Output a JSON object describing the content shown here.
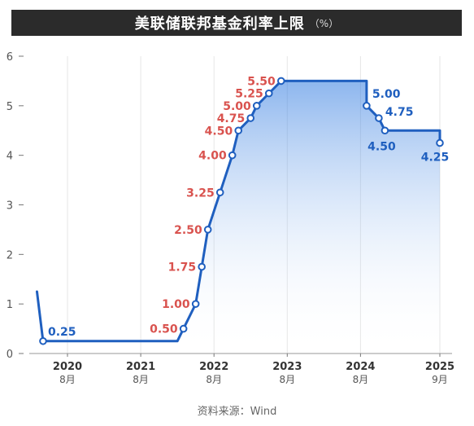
{
  "title": "美联储联邦基金利率上限",
  "unit": "（%）",
  "source_label": "资料来源：Wind",
  "chart_data": {
    "type": "line",
    "title": "美联储联邦基金利率上限",
    "ylabel": "",
    "xlabel": "",
    "ylim": [
      0,
      6
    ],
    "yticks": [
      0,
      1,
      2,
      3,
      4,
      5,
      6
    ],
    "grid": "vertical",
    "xticks": [
      {
        "year": "2020",
        "month": "8月",
        "x": "2020-08"
      },
      {
        "year": "2021",
        "month": "8月",
        "x": "2021-08"
      },
      {
        "year": "2022",
        "month": "8月",
        "x": "2022-08"
      },
      {
        "year": "2023",
        "month": "8月",
        "x": "2023-08"
      },
      {
        "year": "2024",
        "month": "8月",
        "x": "2024-08"
      },
      {
        "year": "2025",
        "month": "9月",
        "x": "2025-09"
      }
    ],
    "series": [
      {
        "values": [
          {
            "x": "2020-03",
            "y": 1.25
          },
          {
            "x": "2020-04",
            "y": 0.25
          },
          {
            "x": "2022-02",
            "y": 0.25
          },
          {
            "x": "2022-03",
            "y": 0.5
          },
          {
            "x": "2022-05",
            "y": 1.0
          },
          {
            "x": "2022-06",
            "y": 1.75
          },
          {
            "x": "2022-07",
            "y": 2.5
          },
          {
            "x": "2022-09",
            "y": 3.25
          },
          {
            "x": "2022-11",
            "y": 4.0
          },
          {
            "x": "2022-12",
            "y": 4.5
          },
          {
            "x": "2023-02",
            "y": 4.75
          },
          {
            "x": "2023-03",
            "y": 5.0
          },
          {
            "x": "2023-05",
            "y": 5.25
          },
          {
            "x": "2023-07",
            "y": 5.5
          },
          {
            "x": "2024-09",
            "y": 5.5
          },
          {
            "x": "2024-09",
            "y": 5.0
          },
          {
            "x": "2024-11",
            "y": 4.75
          },
          {
            "x": "2024-12",
            "y": 4.5
          },
          {
            "x": "2025-09",
            "y": 4.5
          },
          {
            "x": "2025-09",
            "y": 4.25
          }
        ]
      }
    ],
    "annotations": [
      {
        "x": "2020-04",
        "y": 0.25,
        "label": "0.25",
        "color": "#1f5fbf"
      },
      {
        "x": "2022-03",
        "y": 0.5,
        "label": "0.50",
        "color": "#d9534f"
      },
      {
        "x": "2022-05",
        "y": 1.0,
        "label": "1.00",
        "color": "#d9534f"
      },
      {
        "x": "2022-06",
        "y": 1.75,
        "label": "1.75",
        "color": "#d9534f"
      },
      {
        "x": "2022-07",
        "y": 2.5,
        "label": "2.50",
        "color": "#d9534f"
      },
      {
        "x": "2022-09",
        "y": 3.25,
        "label": "3.25",
        "color": "#d9534f"
      },
      {
        "x": "2022-11",
        "y": 4.0,
        "label": "4.00",
        "color": "#d9534f"
      },
      {
        "x": "2022-12",
        "y": 4.5,
        "label": "4.50",
        "color": "#d9534f"
      },
      {
        "x": "2023-02",
        "y": 4.75,
        "label": "4.75",
        "color": "#d9534f"
      },
      {
        "x": "2023-03",
        "y": 5.0,
        "label": "5.00",
        "color": "#d9534f"
      },
      {
        "x": "2023-05",
        "y": 5.25,
        "label": "5.25",
        "color": "#d9534f"
      },
      {
        "x": "2023-07",
        "y": 5.5,
        "label": "5.50",
        "color": "#d9534f"
      },
      {
        "x": "2024-09",
        "y": 5.0,
        "label": "5.00",
        "color": "#1f5fbf"
      },
      {
        "x": "2024-11",
        "y": 4.75,
        "label": "4.75",
        "color": "#1f5fbf"
      },
      {
        "x": "2024-12",
        "y": 4.5,
        "label": "4.50",
        "color": "#1f5fbf"
      },
      {
        "x": "2025-09",
        "y": 4.25,
        "label": "4.25",
        "color": "#1f5fbf"
      }
    ],
    "colors": {
      "line": "#1f5fbf",
      "hike_label": "#d9534f",
      "cut_label": "#1f5fbf",
      "grid": "#e6e6e6"
    }
  }
}
